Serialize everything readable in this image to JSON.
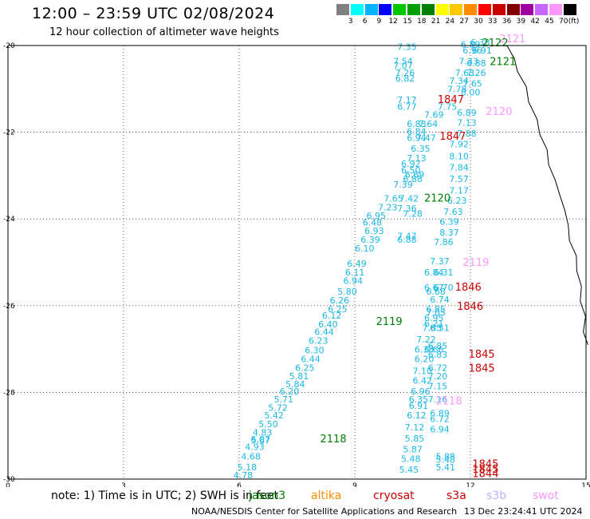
{
  "header": {
    "title": "12:00 – 23:59 UTC 02/08/2024",
    "subtitle": "12 hour collection of altimeter wave heights"
  },
  "colorbar": {
    "unit": "(ft)",
    "ticks": [
      "3",
      "6",
      "9",
      "12",
      "15",
      "18",
      "21",
      "24",
      "27",
      "30",
      "33",
      "36",
      "39",
      "42",
      "45",
      "70"
    ],
    "colors": [
      "#808080",
      "#00ffff",
      "#00b4ff",
      "#0000ff",
      "#00c800",
      "#00a000",
      "#008000",
      "#ffff00",
      "#ffc800",
      "#ff8c00",
      "#ff0000",
      "#c80000",
      "#800000",
      "#a000a0",
      "#c864ff",
      "#ff96ff",
      "#000000"
    ]
  },
  "map": {
    "lon_ticks": [
      "0",
      "3",
      "6",
      "9",
      "12",
      "15"
    ],
    "lat_ticks": [
      "-20",
      "-22",
      "-24",
      "-26",
      "-28",
      "-30"
    ],
    "lon_range": [
      0,
      15
    ],
    "lat_range": [
      -30,
      -20
    ],
    "swh_color": "#1ab8e6",
    "pass_labels": [
      {
        "text": "2121",
        "color": "#ff96ff",
        "lon": 12.75,
        "lat": -19.93
      },
      {
        "text": "2122",
        "color": "#008000",
        "lon": 12.3,
        "lat": -20.02
      },
      {
        "text": "2121",
        "color": "#008000",
        "lon": 12.5,
        "lat": -20.45
      },
      {
        "text": "1847",
        "color": "#cc0000",
        "lon": 11.15,
        "lat": -21.33
      },
      {
        "text": "2120",
        "color": "#ff96ff",
        "lon": 12.4,
        "lat": -21.6
      },
      {
        "text": "1847",
        "color": "#cc0000",
        "lon": 11.2,
        "lat": -22.17
      },
      {
        "text": "2120",
        "color": "#008000",
        "lon": 10.8,
        "lat": -23.6
      },
      {
        "text": "2119",
        "color": "#ff96ff",
        "lon": 11.8,
        "lat": -25.08
      },
      {
        "text": "1846",
        "color": "#cc0000",
        "lon": 11.6,
        "lat": -25.65
      },
      {
        "text": "1846",
        "color": "#cc0000",
        "lon": 11.65,
        "lat": -26.1
      },
      {
        "text": "2119",
        "color": "#008000",
        "lon": 9.55,
        "lat": -26.45
      },
      {
        "text": "1845",
        "color": "#cc0000",
        "lon": 11.95,
        "lat": -27.2
      },
      {
        "text": "1845",
        "color": "#cc0000",
        "lon": 11.95,
        "lat": -27.52
      },
      {
        "text": "2118",
        "color": "#ff96ff",
        "lon": 11.1,
        "lat": -28.28
      },
      {
        "text": "2118",
        "color": "#008000",
        "lon": 8.1,
        "lat": -29.15
      },
      {
        "text": "1845",
        "color": "#cc0000",
        "lon": 12.05,
        "lat": -29.73
      },
      {
        "text": "1844",
        "color": "#cc0000",
        "lon": 12.05,
        "lat": -29.95
      },
      {
        "text": "1845",
        "color": "#cc0000",
        "lon": 12.05,
        "lat": -29.85
      }
    ],
    "swh_values": [
      {
        "t": "7.35",
        "lon": 10.1,
        "lat": -20.1
      },
      {
        "t": "6.89",
        "lon": 11.75,
        "lat": -20.05
      },
      {
        "t": "6.38",
        "lon": 12.0,
        "lat": -20.0
      },
      {
        "t": "6.96",
        "lon": 11.8,
        "lat": -20.18
      },
      {
        "t": "6.91",
        "lon": 12.05,
        "lat": -20.18
      },
      {
        "t": "7.54",
        "lon": 10.0,
        "lat": -20.43
      },
      {
        "t": "7.07",
        "lon": 10.0,
        "lat": -20.53
      },
      {
        "t": "7.33",
        "lon": 11.7,
        "lat": -20.43
      },
      {
        "t": "6.88",
        "lon": 11.9,
        "lat": -20.48
      },
      {
        "t": "7.26",
        "lon": 10.05,
        "lat": -20.7
      },
      {
        "t": "7.63",
        "lon": 11.6,
        "lat": -20.7
      },
      {
        "t": "7.26",
        "lon": 11.9,
        "lat": -20.7
      },
      {
        "t": "6.82",
        "lon": 10.05,
        "lat": -20.83
      },
      {
        "t": "7.34",
        "lon": 11.45,
        "lat": -20.88
      },
      {
        "t": "7.65",
        "lon": 11.8,
        "lat": -20.95
      },
      {
        "t": "7.78",
        "lon": 11.4,
        "lat": -21.08
      },
      {
        "t": "8.00",
        "lon": 11.75,
        "lat": -21.15
      },
      {
        "t": "7.17",
        "lon": 10.1,
        "lat": -21.33
      },
      {
        "t": "6.77",
        "lon": 10.1,
        "lat": -21.48
      },
      {
        "t": "7.75",
        "lon": 11.15,
        "lat": -21.48
      },
      {
        "t": "7.69",
        "lon": 10.8,
        "lat": -21.67
      },
      {
        "t": "6.89",
        "lon": 11.65,
        "lat": -21.62
      },
      {
        "t": "7.13",
        "lon": 11.65,
        "lat": -21.85
      },
      {
        "t": "6.83",
        "lon": 10.35,
        "lat": -21.88
      },
      {
        "t": "7.64",
        "lon": 10.65,
        "lat": -21.88
      },
      {
        "t": "6.84",
        "lon": 10.35,
        "lat": -22.05
      },
      {
        "t": "6.94",
        "lon": 10.35,
        "lat": -22.2
      },
      {
        "t": "7.47",
        "lon": 10.6,
        "lat": -22.2
      },
      {
        "t": "7.88",
        "lon": 11.65,
        "lat": -22.1
      },
      {
        "t": "7.92",
        "lon": 11.45,
        "lat": -22.35
      },
      {
        "t": "6.35",
        "lon": 10.45,
        "lat": -22.45
      },
      {
        "t": "8.10",
        "lon": 11.45,
        "lat": -22.62
      },
      {
        "t": "7.13",
        "lon": 10.35,
        "lat": -22.67
      },
      {
        "t": "6.92",
        "lon": 10.2,
        "lat": -22.8
      },
      {
        "t": "7.84",
        "lon": 11.45,
        "lat": -22.88
      },
      {
        "t": "6.50",
        "lon": 10.2,
        "lat": -22.95
      },
      {
        "t": "6.69",
        "lon": 10.3,
        "lat": -23.05
      },
      {
        "t": "6.88",
        "lon": 10.25,
        "lat": -23.15
      },
      {
        "t": "7.57",
        "lon": 11.45,
        "lat": -23.15
      },
      {
        "t": "7.39",
        "lon": 10.0,
        "lat": -23.28
      },
      {
        "t": "7.17",
        "lon": 11.45,
        "lat": -23.42
      },
      {
        "t": "7.65",
        "lon": 9.75,
        "lat": -23.6
      },
      {
        "t": "7.42",
        "lon": 10.15,
        "lat": -23.6
      },
      {
        "t": "6.23",
        "lon": 11.4,
        "lat": -23.65
      },
      {
        "t": "7.23",
        "lon": 9.6,
        "lat": -23.8
      },
      {
        "t": "7.36",
        "lon": 10.1,
        "lat": -23.83
      },
      {
        "t": "7.28",
        "lon": 10.25,
        "lat": -23.95
      },
      {
        "t": "7.63",
        "lon": 11.3,
        "lat": -23.9
      },
      {
        "t": "6.95",
        "lon": 9.3,
        "lat": -24.0
      },
      {
        "t": "6.48",
        "lon": 9.2,
        "lat": -24.15
      },
      {
        "t": "6.39",
        "lon": 11.2,
        "lat": -24.13
      },
      {
        "t": "6.93",
        "lon": 9.25,
        "lat": -24.35
      },
      {
        "t": "8.37",
        "lon": 11.2,
        "lat": -24.38
      },
      {
        "t": "7.47",
        "lon": 10.1,
        "lat": -24.47
      },
      {
        "t": "6.39",
        "lon": 9.15,
        "lat": -24.55
      },
      {
        "t": "6.88",
        "lon": 10.1,
        "lat": -24.55
      },
      {
        "t": "7.86",
        "lon": 11.05,
        "lat": -24.6
      },
      {
        "t": "6.10",
        "lon": 9.0,
        "lat": -24.75
      },
      {
        "t": "7.37",
        "lon": 10.95,
        "lat": -25.05
      },
      {
        "t": "6.49",
        "lon": 8.8,
        "lat": -25.1
      },
      {
        "t": "6.11",
        "lon": 8.75,
        "lat": -25.3
      },
      {
        "t": "6.84",
        "lon": 10.8,
        "lat": -25.3
      },
      {
        "t": "6.31",
        "lon": 11.05,
        "lat": -25.3
      },
      {
        "t": "6.94",
        "lon": 8.7,
        "lat": -25.5
      },
      {
        "t": "6.67",
        "lon": 10.8,
        "lat": -25.65
      },
      {
        "t": "6.70",
        "lon": 11.05,
        "lat": -25.65
      },
      {
        "t": "6.68",
        "lon": 10.85,
        "lat": -25.75
      },
      {
        "t": "5.80",
        "lon": 8.55,
        "lat": -25.75
      },
      {
        "t": "6.74",
        "lon": 10.95,
        "lat": -25.93
      },
      {
        "t": "6.26",
        "lon": 8.35,
        "lat": -25.95
      },
      {
        "t": "6.25",
        "lon": 8.3,
        "lat": -26.15
      },
      {
        "t": "6.85",
        "lon": 10.85,
        "lat": -26.15
      },
      {
        "t": "7.05",
        "lon": 10.85,
        "lat": -26.23
      },
      {
        "t": "6.12",
        "lon": 8.15,
        "lat": -26.3
      },
      {
        "t": "6.95",
        "lon": 10.8,
        "lat": -26.35
      },
      {
        "t": "6.21",
        "lon": 10.8,
        "lat": -26.48
      },
      {
        "t": "6.40",
        "lon": 8.05,
        "lat": -26.5
      },
      {
        "t": "7.85",
        "lon": 10.75,
        "lat": -26.58
      },
      {
        "t": "6.51",
        "lon": 10.95,
        "lat": -26.58
      },
      {
        "t": "6.44",
        "lon": 7.95,
        "lat": -26.68
      },
      {
        "t": "7.22",
        "lon": 10.6,
        "lat": -26.85
      },
      {
        "t": "6.23",
        "lon": 7.8,
        "lat": -26.88
      },
      {
        "t": "6.85",
        "lon": 10.9,
        "lat": -27.0
      },
      {
        "t": "6.30",
        "lon": 7.7,
        "lat": -27.1
      },
      {
        "t": "6.38",
        "lon": 10.55,
        "lat": -27.08
      },
      {
        "t": "6.66",
        "lon": 10.8,
        "lat": -27.08
      },
      {
        "t": "6.83",
        "lon": 10.9,
        "lat": -27.2
      },
      {
        "t": "6.44",
        "lon": 7.6,
        "lat": -27.3
      },
      {
        "t": "6.20",
        "lon": 10.55,
        "lat": -27.3
      },
      {
        "t": "6.25",
        "lon": 7.45,
        "lat": -27.5
      },
      {
        "t": "6.72",
        "lon": 10.9,
        "lat": -27.5
      },
      {
        "t": "7.10",
        "lon": 10.5,
        "lat": -27.58
      },
      {
        "t": "5.81",
        "lon": 7.3,
        "lat": -27.7
      },
      {
        "t": "7.20",
        "lon": 10.9,
        "lat": -27.7
      },
      {
        "t": "6.42",
        "lon": 10.5,
        "lat": -27.8
      },
      {
        "t": "5.84",
        "lon": 7.2,
        "lat": -27.88
      },
      {
        "t": "7.15",
        "lon": 10.9,
        "lat": -27.93
      },
      {
        "t": "6.20",
        "lon": 7.05,
        "lat": -28.05
      },
      {
        "t": "6.96",
        "lon": 10.45,
        "lat": -28.05
      },
      {
        "t": "5.71",
        "lon": 6.9,
        "lat": -28.23
      },
      {
        "t": "6.35",
        "lon": 10.4,
        "lat": -28.23
      },
      {
        "t": "7.16",
        "lon": 10.9,
        "lat": -28.23
      },
      {
        "t": "5.72",
        "lon": 6.75,
        "lat": -28.43
      },
      {
        "t": "6.91",
        "lon": 10.4,
        "lat": -28.38
      },
      {
        "t": "6.12",
        "lon": 10.35,
        "lat": -28.6
      },
      {
        "t": "6.89",
        "lon": 10.95,
        "lat": -28.55
      },
      {
        "t": "5.42",
        "lon": 6.65,
        "lat": -28.6
      },
      {
        "t": "6.72",
        "lon": 10.95,
        "lat": -28.68
      },
      {
        "t": "5.50",
        "lon": 6.5,
        "lat": -28.8
      },
      {
        "t": "7.12",
        "lon": 10.3,
        "lat": -28.88
      },
      {
        "t": "6.94",
        "lon": 10.95,
        "lat": -28.92
      },
      {
        "t": "4.83",
        "lon": 6.35,
        "lat": -29.0
      },
      {
        "t": "5.85",
        "lon": 10.3,
        "lat": -29.13
      },
      {
        "t": "6.07",
        "lon": 6.3,
        "lat": -29.15
      },
      {
        "t": "5.67",
        "lon": 6.3,
        "lat": -29.18
      },
      {
        "t": "4.93",
        "lon": 6.15,
        "lat": -29.33
      },
      {
        "t": "5.87",
        "lon": 10.25,
        "lat": -29.38
      },
      {
        "t": "4.68",
        "lon": 6.05,
        "lat": -29.55
      },
      {
        "t": "5.48",
        "lon": 10.2,
        "lat": -29.6
      },
      {
        "t": "5.88",
        "lon": 11.1,
        "lat": -29.55
      },
      {
        "t": "5.48",
        "lon": 11.1,
        "lat": -29.62
      },
      {
        "t": "5.18",
        "lon": 5.95,
        "lat": -29.8
      },
      {
        "t": "5.41",
        "lon": 11.1,
        "lat": -29.8
      },
      {
        "t": "5.45",
        "lon": 10.15,
        "lat": -29.85
      },
      {
        "t": "4.78",
        "lon": 5.85,
        "lat": -29.98
      }
    ]
  },
  "note": "note:  1) Time is in UTC;  2) SWH is in feet",
  "legend": [
    {
      "label": "jason3",
      "color": "#008000"
    },
    {
      "label": "altika",
      "color": "#ff8c00"
    },
    {
      "label": "cryosat",
      "color": "#cc0000"
    },
    {
      "label": "s3a",
      "color": "#cc0000"
    },
    {
      "label": "s3b",
      "color": "#b4b4ff"
    },
    {
      "label": "swot",
      "color": "#ff96ff"
    }
  ],
  "footer": {
    "credit": "NOAA/NESDIS Center for Satellite Applications and Research",
    "timestamp": "13 Dec 23:24:41 UTC 2024"
  }
}
